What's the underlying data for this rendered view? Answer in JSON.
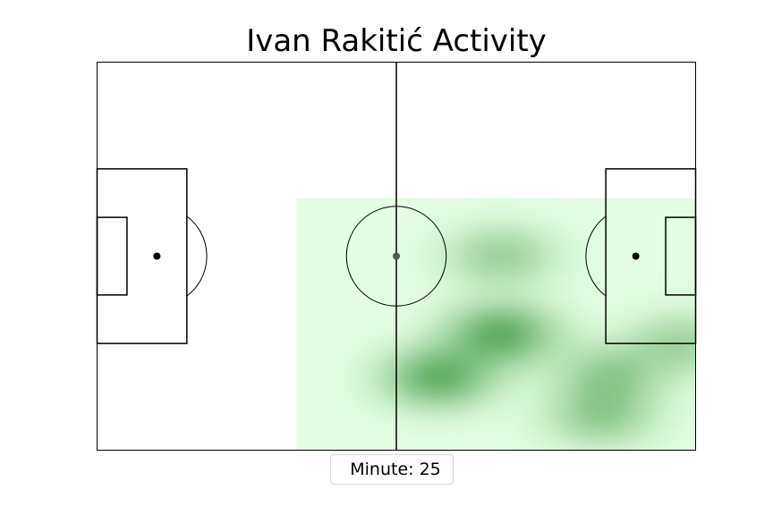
{
  "title": "Ivan Rakitić Activity",
  "legend": {
    "label": "Minute:",
    "value": "25"
  },
  "colors": {
    "heat_base": "#e4fde4",
    "heat_core": "#0a7a0a",
    "lines": "#000000"
  },
  "chart_data": {
    "type": "heatmap",
    "title": "Ivan Rakitić Activity",
    "xlim": [
      0,
      120
    ],
    "ylim": [
      0,
      80
    ],
    "minute": 25,
    "heat_region": {
      "x": [
        40,
        120
      ],
      "y": [
        0,
        52
      ]
    },
    "hotspots": [
      {
        "x": 81,
        "y": 24,
        "intensity": 1.0
      },
      {
        "x": 68.5,
        "y": 15,
        "intensity": 0.95
      },
      {
        "x": 103,
        "y": 15.5,
        "intensity": 0.55
      },
      {
        "x": 101,
        "y": 7,
        "intensity": 0.55
      },
      {
        "x": 81,
        "y": 40,
        "intensity": 0.5
      },
      {
        "x": 117,
        "y": 22,
        "intensity": 0.45
      }
    ]
  }
}
